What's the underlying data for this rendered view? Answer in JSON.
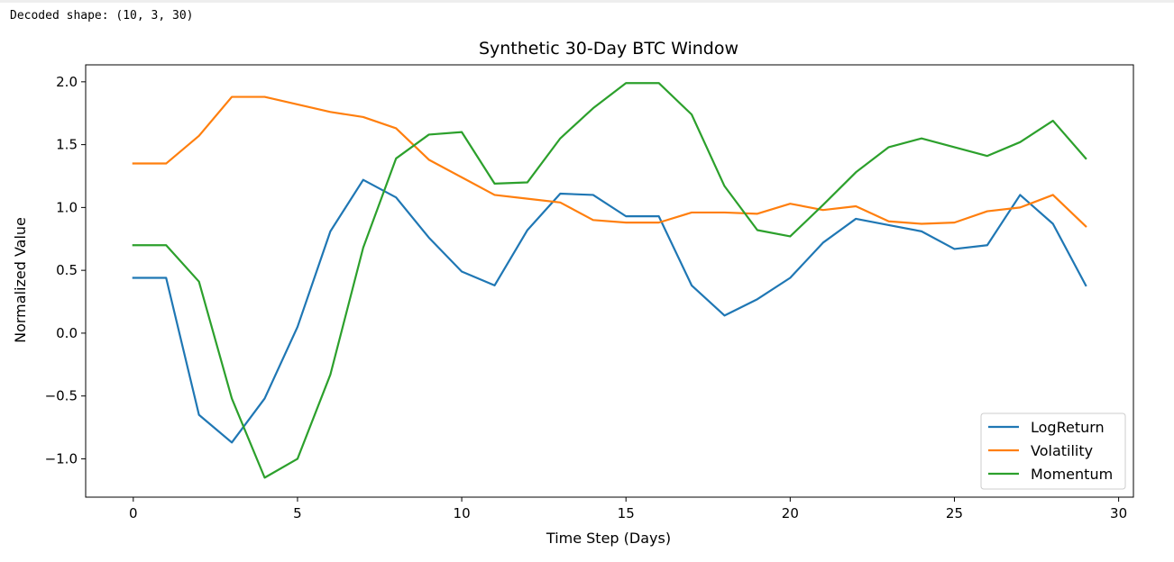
{
  "console": {
    "output_text": "Decoded shape: (10, 3, 30)"
  },
  "colors": {
    "LogReturn": "#1f77b4",
    "Volatility": "#ff7f0e",
    "Momentum": "#2ca02c"
  },
  "chart_data": {
    "type": "line",
    "title": "Synthetic 30-Day BTC Window",
    "xlabel": "Time Step (Days)",
    "ylabel": "Normalized Value",
    "xlim": [
      -1.45,
      30.45
    ],
    "ylim": [
      -1.305,
      2.135
    ],
    "xticks": [
      0,
      5,
      10,
      15,
      20,
      25,
      30
    ],
    "xtick_labels": [
      "0",
      "5",
      "10",
      "15",
      "20",
      "25",
      "30"
    ],
    "yticks": [
      -1.0,
      -0.5,
      0.0,
      0.5,
      1.0,
      1.5,
      2.0
    ],
    "ytick_labels": [
      "−1.0",
      "−0.5",
      "0.0",
      "0.5",
      "1.0",
      "1.5",
      "2.0"
    ],
    "grid": false,
    "legend_position": "lower-right",
    "x": [
      0,
      1,
      2,
      3,
      4,
      5,
      6,
      7,
      8,
      9,
      10,
      11,
      12,
      13,
      14,
      15,
      16,
      17,
      18,
      19,
      20,
      21,
      22,
      23,
      24,
      25,
      26,
      27,
      28,
      29
    ],
    "series": [
      {
        "name": "LogReturn",
        "values": [
          0.44,
          0.44,
          -0.65,
          -0.87,
          -0.52,
          0.05,
          0.81,
          1.22,
          1.08,
          0.76,
          0.49,
          0.38,
          0.82,
          1.11,
          1.1,
          0.93,
          0.93,
          0.38,
          0.14,
          0.27,
          0.44,
          0.72,
          0.91,
          0.86,
          0.81,
          0.67,
          0.7,
          1.1,
          0.87,
          0.38
        ]
      },
      {
        "name": "Volatility",
        "values": [
          1.35,
          1.35,
          1.57,
          1.88,
          1.88,
          1.82,
          1.76,
          1.72,
          1.63,
          1.38,
          1.24,
          1.1,
          1.07,
          1.04,
          0.9,
          0.88,
          0.88,
          0.96,
          0.96,
          0.95,
          1.03,
          0.98,
          1.01,
          0.89,
          0.87,
          0.88,
          0.97,
          1.0,
          1.1,
          0.85
        ]
      },
      {
        "name": "Momentum",
        "values": [
          0.7,
          0.7,
          0.41,
          -0.52,
          -1.15,
          -1.0,
          -0.33,
          0.68,
          1.39,
          1.58,
          1.6,
          1.19,
          1.2,
          1.55,
          1.79,
          1.99,
          1.99,
          1.74,
          1.17,
          0.82,
          0.77,
          1.02,
          1.28,
          1.48,
          1.55,
          1.48,
          1.41,
          1.52,
          1.69,
          1.39
        ]
      }
    ]
  }
}
